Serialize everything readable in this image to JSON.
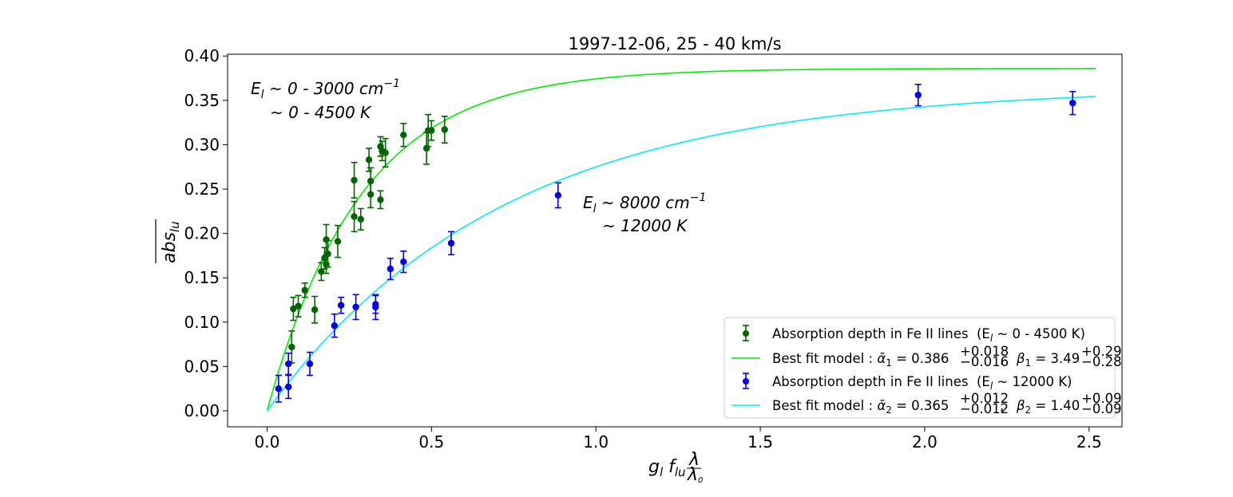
{
  "chart_data": {
    "type": "scatter",
    "title": "1997-12-06,   25 - 40 km/s",
    "xlabel": {
      "main": "g",
      "sub1": "l",
      "f": "f",
      "sub2": "lu",
      "frac_num": "λ",
      "frac_den_main": "λ",
      "frac_den_sub": "0"
    },
    "ylabel": {
      "main": "abs",
      "sub": "lu"
    },
    "xlim": [
      -0.12,
      2.6
    ],
    "ylim": [
      -0.018,
      0.402
    ],
    "xticks": [
      0.0,
      0.5,
      1.0,
      1.5,
      2.0,
      2.5
    ],
    "xtick_labels": [
      "0.0",
      "0.5",
      "1.0",
      "1.5",
      "2.0",
      "2.5"
    ],
    "yticks": [
      0.0,
      0.05,
      0.1,
      0.15,
      0.2,
      0.25,
      0.3,
      0.35,
      0.4
    ],
    "ytick_labels": [
      "0.00",
      "0.05",
      "0.10",
      "0.15",
      "0.20",
      "0.25",
      "0.30",
      "0.35",
      "0.40"
    ],
    "grid": false,
    "legend_position": "lower-right",
    "series": [
      {
        "name": "Absorption depth in Fe II lines",
        "legend_tail": "(E",
        "legend_sub": "l",
        "legend_end": " ~ 0 - 4500 K)",
        "kind": "errorbar",
        "color": "#006400",
        "points": [
          [
            0.075,
            0.072,
            0.018
          ],
          [
            0.08,
            0.115,
            0.013
          ],
          [
            0.095,
            0.118,
            0.012
          ],
          [
            0.115,
            0.136,
            0.008
          ],
          [
            0.145,
            0.114,
            0.015
          ],
          [
            0.165,
            0.157,
            0.01
          ],
          [
            0.175,
            0.172,
            0.012
          ],
          [
            0.18,
            0.165,
            0.01
          ],
          [
            0.18,
            0.193,
            0.017
          ],
          [
            0.185,
            0.177,
            0.015
          ],
          [
            0.215,
            0.191,
            0.018
          ],
          [
            0.265,
            0.26,
            0.02
          ],
          [
            0.265,
            0.219,
            0.017
          ],
          [
            0.285,
            0.216,
            0.012
          ],
          [
            0.31,
            0.283,
            0.013
          ],
          [
            0.315,
            0.259,
            0.015
          ],
          [
            0.315,
            0.244,
            0.015
          ],
          [
            0.345,
            0.298,
            0.011
          ],
          [
            0.345,
            0.238,
            0.01
          ],
          [
            0.35,
            0.293,
            0.011
          ],
          [
            0.36,
            0.291,
            0.016
          ],
          [
            0.415,
            0.311,
            0.013
          ],
          [
            0.485,
            0.296,
            0.018
          ],
          [
            0.49,
            0.316,
            0.018
          ],
          [
            0.5,
            0.316,
            0.011
          ],
          [
            0.54,
            0.317,
            0.015
          ]
        ]
      },
      {
        "name": "Best fit model : ",
        "kind": "model",
        "color": "#00ee00",
        "alpha": 0.386,
        "alpha_up": "+0.018",
        "alpha_dn": "−0.016",
        "beta": 3.49,
        "beta_up": "+0.29",
        "beta_dn": "−0.28",
        "legend_alpha": "ᾱ",
        "legend_alpha_sub": "1",
        "legend_alpha_val": " = 0.386",
        "legend_beta": "β",
        "legend_beta_sub": "1",
        "legend_beta_val": " = 3.49"
      },
      {
        "name": "Absorption depth in Fe II lines",
        "legend_tail": "(E",
        "legend_sub": "l",
        "legend_end": " ~ 12000 K)",
        "kind": "errorbar",
        "color": "#0000ee",
        "points": [
          [
            0.035,
            0.025,
            0.015
          ],
          [
            0.065,
            0.027,
            0.013
          ],
          [
            0.065,
            0.053,
            0.012
          ],
          [
            0.13,
            0.053,
            0.013
          ],
          [
            0.205,
            0.096,
            0.013
          ],
          [
            0.225,
            0.119,
            0.009
          ],
          [
            0.27,
            0.117,
            0.014
          ],
          [
            0.33,
            0.117,
            0.014
          ],
          [
            0.33,
            0.12,
            0.01
          ],
          [
            0.375,
            0.16,
            0.012
          ],
          [
            0.415,
            0.168,
            0.012
          ],
          [
            0.56,
            0.189,
            0.013
          ],
          [
            0.885,
            0.243,
            0.014
          ],
          [
            1.98,
            0.356,
            0.012
          ],
          [
            2.45,
            0.347,
            0.013
          ]
        ]
      },
      {
        "name": "Best fit model : ",
        "kind": "model",
        "color": "#00f0f0",
        "alpha": 0.365,
        "alpha_up": "+0.012",
        "alpha_dn": "−0.012",
        "beta": 1.4,
        "beta_up": "+0.09",
        "beta_dn": "−0.09",
        "legend_alpha": "ᾱ",
        "legend_alpha_sub": "2",
        "legend_alpha_val": " = 0.365",
        "legend_beta": "β",
        "legend_beta_sub": "2",
        "legend_beta_val": " = 1.40"
      }
    ],
    "model_x_range": [
      0.0,
      2.52
    ],
    "annotations": [
      {
        "l1_pre": "E",
        "l1_sub": "l",
        "l1_post": " ~ 0 - 3000 cm",
        "l1_sup": "−1",
        "l2": "~ 0 - 4500 K"
      },
      {
        "l1_pre": "E",
        "l1_sub": "l",
        "l1_post": " ~ 8000 cm",
        "l1_sup": "−1",
        "l2": "~ 12000 K"
      }
    ]
  }
}
